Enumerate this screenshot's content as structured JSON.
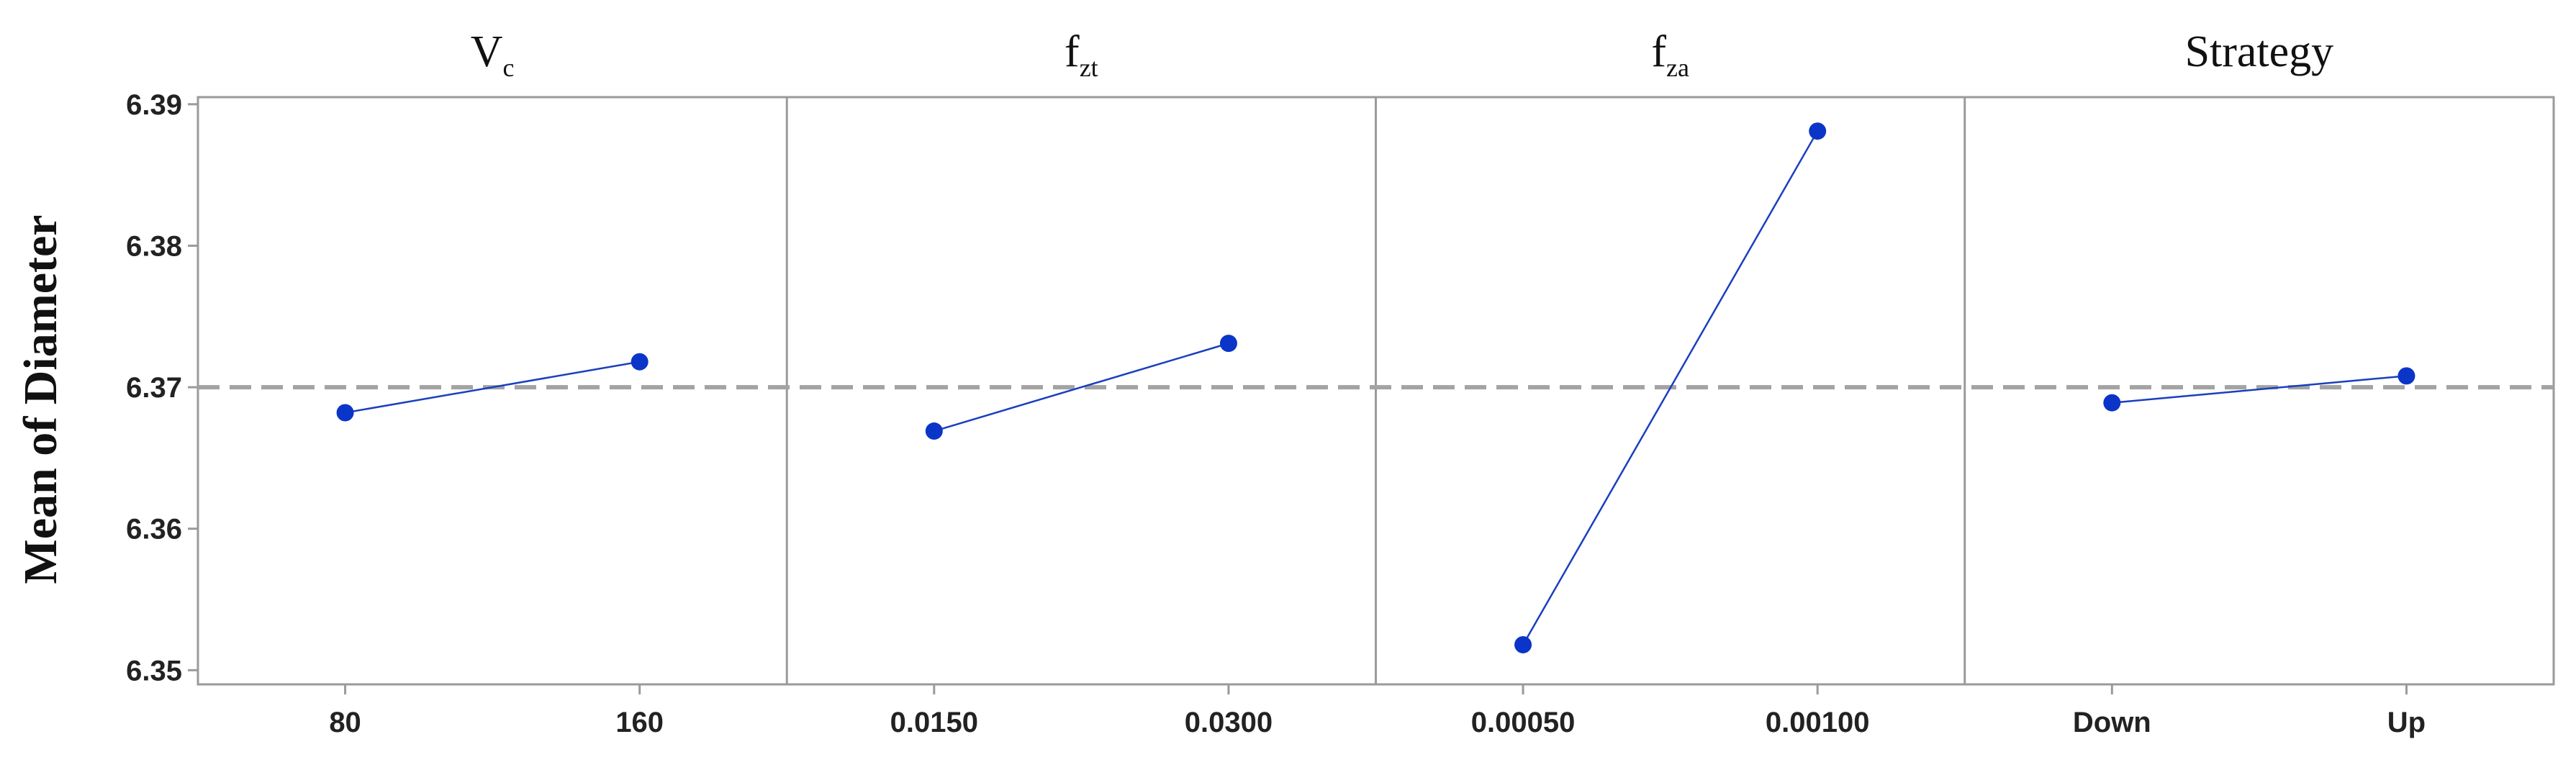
{
  "chart_data": {
    "type": "line",
    "ylabel": "Mean of Diameter",
    "ylim": [
      6.349,
      6.3905
    ],
    "yticks": [
      6.35,
      6.36,
      6.37,
      6.38,
      6.39
    ],
    "ytick_labels": [
      "6.35",
      "6.36",
      "6.37",
      "6.38",
      "6.39"
    ],
    "reference_line": {
      "value": 6.37,
      "style": "dashed"
    },
    "grid": false,
    "colors": {
      "series": "#1a3fbf",
      "marker": "#0b35c8",
      "reference": "#a3a3a3",
      "axis": "#9a9a9a"
    },
    "panels": [
      {
        "title": "V",
        "title_sub": "c",
        "categories": [
          "80",
          "160"
        ],
        "values": [
          6.3682,
          6.3718
        ]
      },
      {
        "title": "f",
        "title_sub": "zt",
        "categories": [
          "0.0150",
          "0.0300"
        ],
        "values": [
          6.3669,
          6.3731
        ]
      },
      {
        "title": "f",
        "title_sub": "za",
        "categories": [
          "0.00050",
          "0.00100"
        ],
        "values": [
          6.3518,
          6.3881
        ]
      },
      {
        "title": "Strategy",
        "title_sub": "",
        "categories": [
          "Down",
          "Up"
        ],
        "values": [
          6.3689,
          6.3708
        ]
      }
    ]
  }
}
